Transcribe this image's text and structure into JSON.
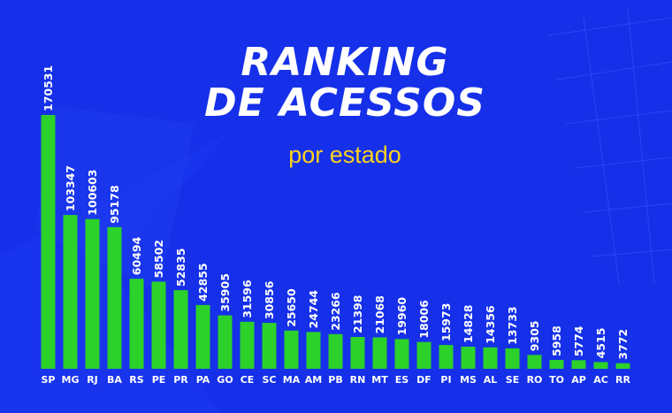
{
  "header": {
    "title_line1": "RANKING",
    "title_line2": "DE ACESSOS",
    "subtitle": "por estado"
  },
  "colors": {
    "background": "#1530e8",
    "bar": "#2cd12a",
    "text": "#ffffff",
    "subtitle": "#ffd21c"
  },
  "chart_data": {
    "type": "bar",
    "title": "RANKING DE ACESSOS por estado",
    "xlabel": "",
    "ylabel": "",
    "grid": false,
    "ylim": [
      0,
      170531
    ],
    "categories": [
      "SP",
      "MG",
      "RJ",
      "BA",
      "RS",
      "PE",
      "PR",
      "PA",
      "GO",
      "CE",
      "SC",
      "MA",
      "AM",
      "PB",
      "RN",
      "MT",
      "ES",
      "DF",
      "PI",
      "MS",
      "AL",
      "SE",
      "RO",
      "TO",
      "AP",
      "AC",
      "RR"
    ],
    "values": [
      170531,
      103347,
      100603,
      95178,
      60494,
      58502,
      52835,
      42855,
      35905,
      31596,
      30856,
      25650,
      24744,
      23266,
      21398,
      21068,
      19960,
      18006,
      15973,
      14828,
      14356,
      13733,
      9305,
      5958,
      5774,
      4515,
      3772
    ]
  }
}
